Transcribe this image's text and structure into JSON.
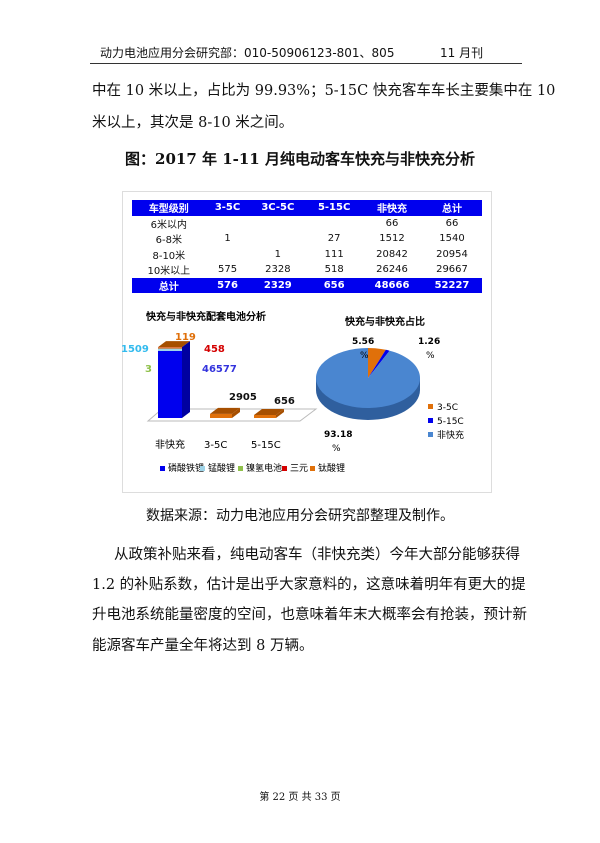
{
  "header": {
    "left": "动力电池应用分会研究部：010-50906123-801、805",
    "right": "11 月刊"
  },
  "intro_lines": [
    "中在 10 米以上，占比为 99.93%；5-15C 快充客车车长主要集中在 10",
    "米以上，其次是 8-10 米之间。"
  ],
  "figure_title": "图：2017 年 1-11 月纯电动客车快充与非快充分析",
  "table": {
    "headers": [
      "车型级别",
      "3-5C",
      "3C-5C",
      "5-15C",
      "非快充",
      "总计"
    ],
    "rows": [
      [
        "6米以内",
        "",
        "",
        "",
        "66",
        "66"
      ],
      [
        "6-8米",
        "1",
        "",
        "27",
        "1512",
        "1540"
      ],
      [
        "8-10米",
        "",
        "1",
        "111",
        "20842",
        "20954"
      ],
      [
        "10米以上",
        "575",
        "2328",
        "518",
        "26246",
        "29667"
      ]
    ],
    "total": [
      "总计",
      "576",
      "2329",
      "656",
      "48666",
      "52227"
    ]
  },
  "chart_data": [
    {
      "type": "bar",
      "title": "快充与非快充配套电池分析",
      "categories": [
        "非快充",
        "3-5C",
        "5-15C"
      ],
      "series": [
        {
          "name": "磷酸铁锂",
          "color": "#0000ee",
          "values": [
            46577,
            0,
            0
          ]
        },
        {
          "name": "锰酸锂",
          "color": "#9fd4e8",
          "values": [
            1509,
            0,
            0
          ]
        },
        {
          "name": "镍氢电池",
          "color": "#8fc04a",
          "values": [
            3,
            0,
            0
          ]
        },
        {
          "name": "三元",
          "color": "#d40000",
          "values": [
            458,
            0,
            0
          ]
        },
        {
          "name": "钛酸锂",
          "color": "#e0700a",
          "values": [
            119,
            2905,
            656
          ]
        }
      ],
      "data_labels": [
        {
          "text": "1509",
          "color": "#33bbee"
        },
        {
          "text": "119",
          "color": "#e0700a"
        },
        {
          "text": "458",
          "color": "#d40000"
        },
        {
          "text": "3",
          "color": "#8fc04a"
        },
        {
          "text": "46577",
          "color": "#3333dd"
        },
        {
          "text": "2905",
          "color": "#111"
        },
        {
          "text": "656",
          "color": "#111"
        }
      ],
      "legend": "bottom"
    },
    {
      "type": "pie",
      "title": "快充与非快充占比",
      "categories": [
        "3-5C",
        "5-15C",
        "非快充"
      ],
      "values": [
        5.56,
        1.26,
        93.18
      ],
      "colors": [
        "#e0700a",
        "#0000ee",
        "#4a86d0"
      ],
      "labels": [
        "5.56 %",
        "1.26 %",
        "93.18 %"
      ],
      "legend": "right"
    }
  ],
  "source": "数据来源：动力电池应用分会研究部整理及制作。",
  "body_lines": [
    "从政策补贴来看，纯电动客车（非快充类）今年大部分能够获得",
    "1.2 的补贴系数，估计是出乎大家意料的，这意味着明年有更大的提",
    "升电池系统能量密度的空间，也意味着年末大概率会有抢装，预计新",
    "能源客车产量全年将达到 8 万辆。"
  ],
  "footer": "第 22 页 共 33 页"
}
